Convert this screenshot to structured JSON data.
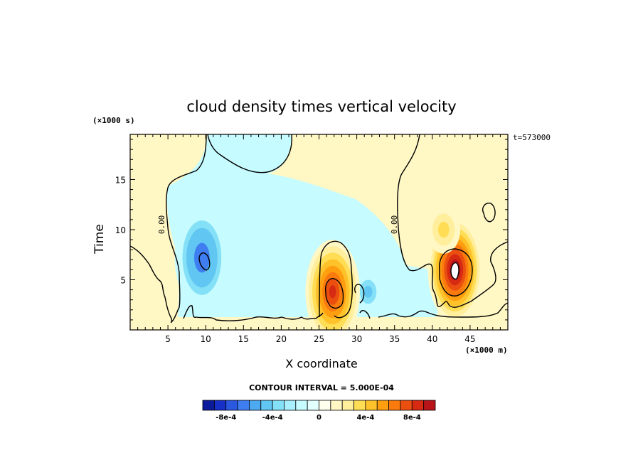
{
  "chart_data": {
    "type": "heatmap",
    "title": "cloud density times vertical velocity",
    "xlabel": "X coordinate",
    "ylabel": "Time",
    "x_unit_label": "(×1000 m)",
    "y_unit_label": "(×1000 s)",
    "time_stamp": "t=573000",
    "contour_interval_label": "CONTOUR INTERVAL = 5.000E-04",
    "xlim": [
      0,
      50
    ],
    "ylim": [
      0,
      19.5
    ],
    "x_ticks": [
      5,
      10,
      15,
      20,
      25,
      30,
      35,
      40,
      45
    ],
    "y_ticks": [
      5,
      10,
      15
    ],
    "contour_labels": [
      "0.00",
      "0.00"
    ],
    "colorbar": {
      "levels": [
        -0.00095,
        -0.00085,
        -0.00075,
        -0.00065,
        -0.00055,
        -0.00045,
        -0.00035,
        -0.00025,
        -0.00015,
        -5e-05,
        5e-05,
        0.00015,
        0.00025,
        0.00035,
        0.00045,
        0.00055,
        0.00065,
        0.00075,
        0.00085,
        0.00095
      ],
      "colors": [
        "#0c1b9b",
        "#1730c8",
        "#2a58e0",
        "#3f7ef0",
        "#4da9f0",
        "#61c6f2",
        "#84e0f7",
        "#a8efff",
        "#c6fbff",
        "#e2ffff",
        "#ffffee",
        "#fff7c4",
        "#ffee9b",
        "#ffdd55",
        "#ffc22a",
        "#ff9f10",
        "#fa7a0e",
        "#ea4f10",
        "#d62b12",
        "#b8141a"
      ],
      "tick_labels": [
        "-8e-4",
        "-4e-4",
        "0",
        "4e-4",
        "8e-4"
      ],
      "tick_values": [
        -0.0008,
        -0.0004,
        0,
        0.0004,
        0.0008
      ]
    },
    "features": [
      {
        "type": "negative_max",
        "x": 9.5,
        "y": 7.2,
        "value": -0.0007
      },
      {
        "type": "negative",
        "x": 31.5,
        "y": 3.8,
        "value": -0.0004
      },
      {
        "type": "negative",
        "x": 14.5,
        "y": 5.0,
        "value": -0.0002
      },
      {
        "type": "positive_max",
        "x": 26.8,
        "y": 3.8,
        "value": 0.0008
      },
      {
        "type": "positive_max",
        "x": 43.0,
        "y": 6.0,
        "value": 0.00095
      },
      {
        "type": "positive",
        "x": 41.5,
        "y": 10.0,
        "value": 0.0003
      }
    ]
  }
}
